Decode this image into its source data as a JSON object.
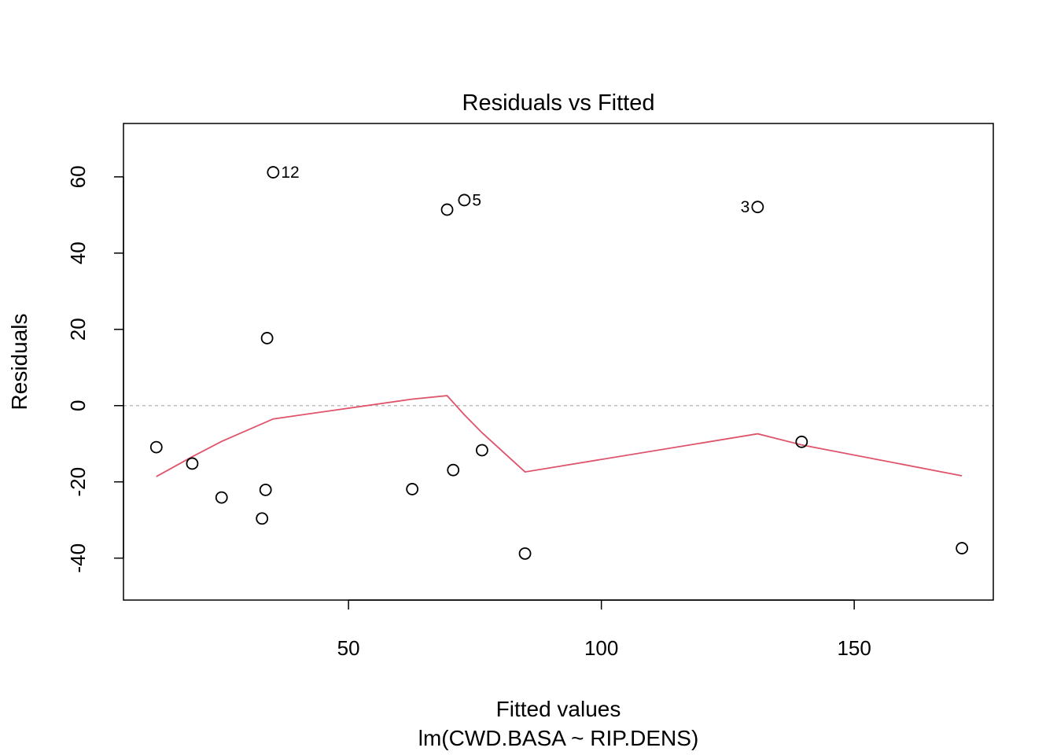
{
  "chart_data": {
    "type": "scatter",
    "title": "Residuals vs Fitted",
    "xlabel": "Fitted values",
    "subtitle": "lm(CWD.BASA ~ RIP.DENS)",
    "ylabel": "Residuals",
    "xlim": [
      5.5,
      177.5
    ],
    "ylim": [
      -51,
      74
    ],
    "xticks": [
      50,
      100,
      150
    ],
    "yticks": [
      -40,
      -20,
      0,
      20,
      40,
      60
    ],
    "grid": false,
    "colors": {
      "points": "#000000",
      "smooth": "#DF536B",
      "zero_line": "#BEBEBE"
    },
    "points": [
      {
        "x": 12.0,
        "y": -10.9,
        "label": ""
      },
      {
        "x": 19.1,
        "y": -15.2,
        "label": ""
      },
      {
        "x": 24.9,
        "y": -24.1,
        "label": ""
      },
      {
        "x": 32.9,
        "y": -29.6,
        "label": ""
      },
      {
        "x": 33.6,
        "y": -22.1,
        "label": ""
      },
      {
        "x": 33.9,
        "y": 17.7,
        "label": ""
      },
      {
        "x": 35.1,
        "y": 61.2,
        "label": "12"
      },
      {
        "x": 62.6,
        "y": -21.9,
        "label": ""
      },
      {
        "x": 69.5,
        "y": 51.4,
        "label": ""
      },
      {
        "x": 70.7,
        "y": -16.9,
        "label": ""
      },
      {
        "x": 72.9,
        "y": 53.9,
        "label": "5"
      },
      {
        "x": 76.4,
        "y": -11.7,
        "label": ""
      },
      {
        "x": 84.9,
        "y": -38.8,
        "label": ""
      },
      {
        "x": 130.9,
        "y": 52.1,
        "label": "3"
      },
      {
        "x": 139.6,
        "y": -9.5,
        "label": ""
      },
      {
        "x": 171.3,
        "y": -37.4,
        "label": ""
      }
    ],
    "smooth": [
      {
        "x": 12.0,
        "y": -18.6
      },
      {
        "x": 19.1,
        "y": -13.4
      },
      {
        "x": 24.9,
        "y": -9.4
      },
      {
        "x": 35.1,
        "y": -3.5
      },
      {
        "x": 62.6,
        "y": 1.7
      },
      {
        "x": 69.5,
        "y": 2.6
      },
      {
        "x": 72.9,
        "y": -2.4
      },
      {
        "x": 76.4,
        "y": -7.1
      },
      {
        "x": 84.9,
        "y": -17.4
      },
      {
        "x": 130.9,
        "y": -7.4
      },
      {
        "x": 139.6,
        "y": -10.3
      },
      {
        "x": 171.3,
        "y": -18.4
      }
    ]
  }
}
